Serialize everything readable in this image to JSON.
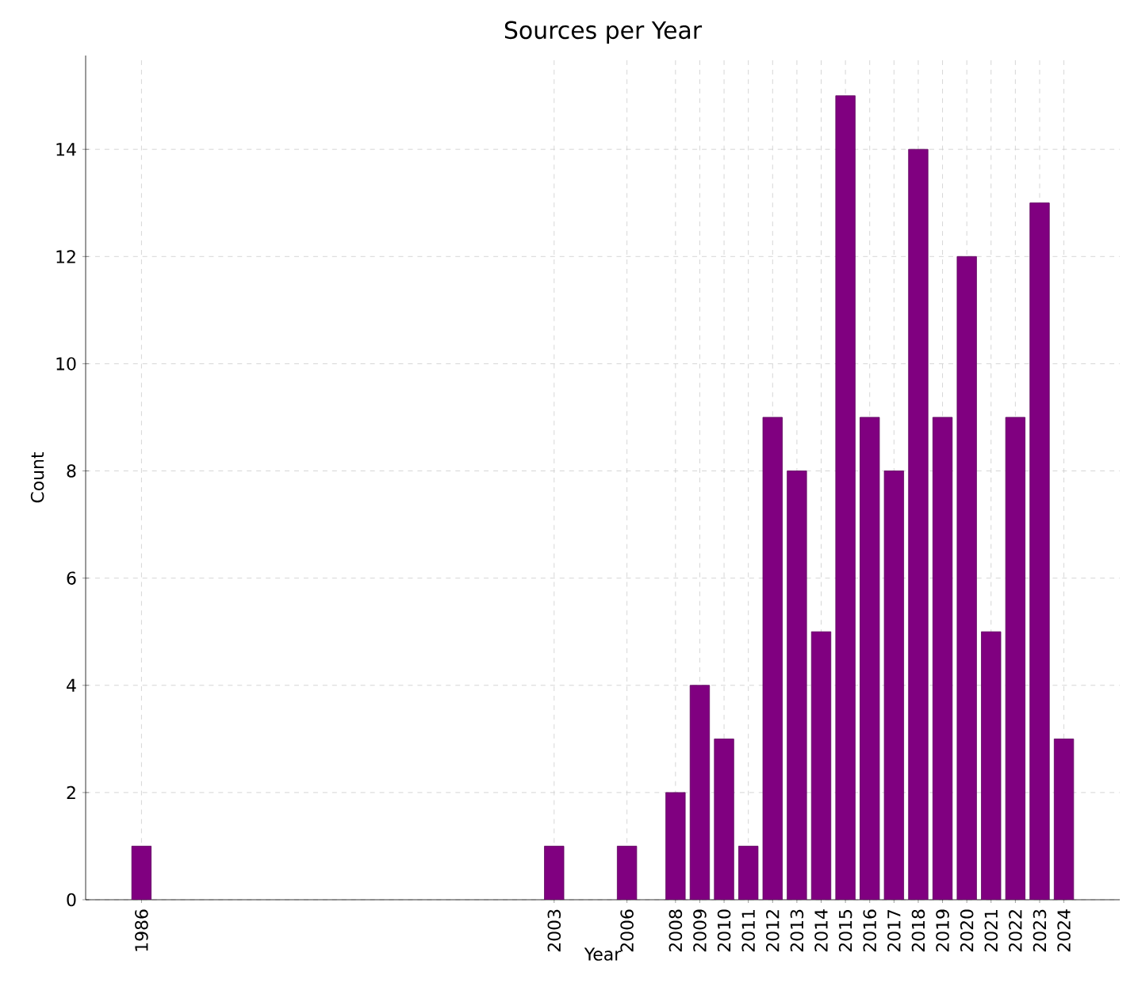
{
  "chart_data": {
    "type": "bar",
    "title": "Sources per Year",
    "xlabel": "Year",
    "ylabel": "Count",
    "x": [
      1986,
      2003,
      2006,
      2008,
      2009,
      2010,
      2011,
      2012,
      2013,
      2014,
      2015,
      2016,
      2017,
      2018,
      2019,
      2020,
      2021,
      2022,
      2023,
      2024
    ],
    "values": [
      1,
      1,
      1,
      2,
      4,
      3,
      1,
      9,
      8,
      5,
      15,
      9,
      8,
      14,
      9,
      12,
      5,
      9,
      13,
      3
    ],
    "color": "#800080",
    "xlim": [
      1983.7,
      2026.3
    ],
    "xticks": [
      1986,
      2003,
      2006,
      2008,
      2009,
      2010,
      2011,
      2012,
      2013,
      2014,
      2015,
      2016,
      2017,
      2018,
      2019,
      2020,
      2021,
      2022,
      2023,
      2024
    ],
    "ylim": [
      0,
      15.75
    ],
    "yticks": [
      0,
      2,
      4,
      6,
      8,
      10,
      12,
      14
    ],
    "grid": true
  }
}
